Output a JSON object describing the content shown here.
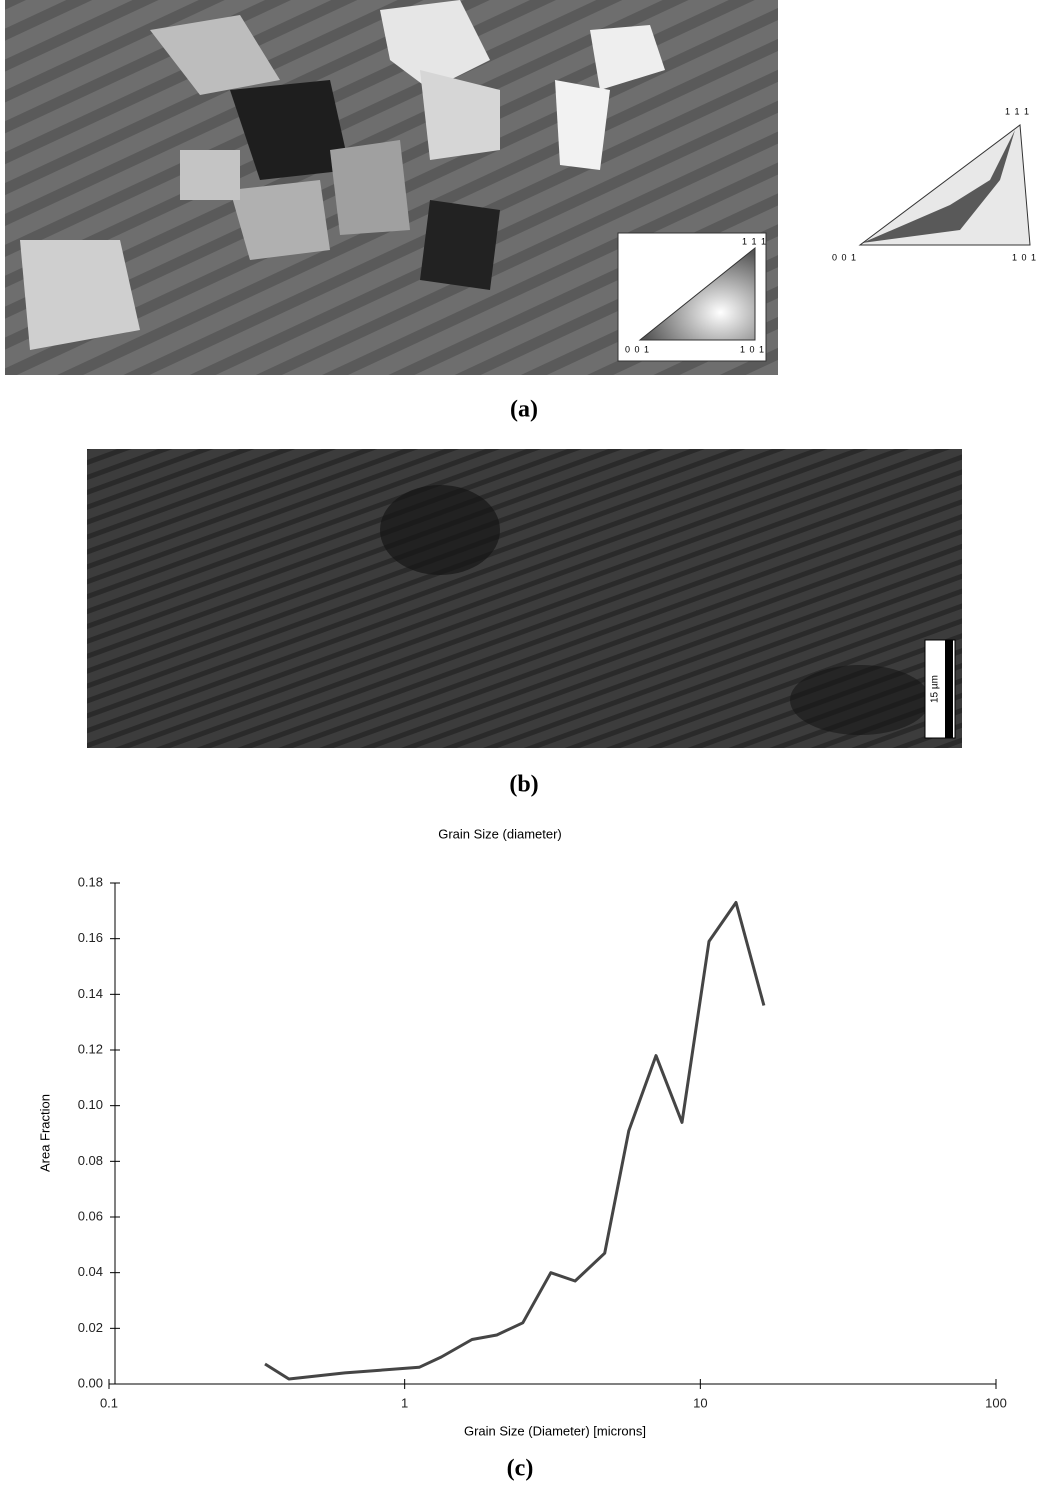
{
  "figure": {
    "panel_a": {
      "inset_labels": [
        "1 1 1",
        "0 0 1",
        "1 0 1"
      ],
      "pole_figure_labels": [
        "1 1 1",
        "0 0 1",
        "1 0 1"
      ],
      "caption": "(a)"
    },
    "panel_b": {
      "scale_bar": "15 µm",
      "caption": "(b)"
    },
    "panel_c": {
      "caption": "(c)"
    }
  },
  "chart_data": {
    "type": "line",
    "title": "Grain Size (diameter)",
    "x_label": "Grain Size (Diameter) [microns]",
    "y_label": "Area Fraction",
    "x": [
      0.337,
      0.406,
      0.628,
      1.12,
      1.33,
      1.69,
      2.05,
      2.51,
      3.12,
      3.77,
      4.75,
      5.73,
      7.08,
      8.67,
      10.7,
      13.2,
      16.4
    ],
    "values": [
      0.0072,
      0.0018,
      0.004,
      0.006,
      0.0097,
      0.016,
      0.0176,
      0.022,
      0.04,
      0.037,
      0.047,
      0.091,
      0.118,
      0.094,
      0.159,
      0.173,
      0.136
    ],
    "color": "#454545",
    "x_log": true,
    "grid": false,
    "xlim": [
      0.1,
      100
    ],
    "xticks": [
      0.1,
      1,
      10,
      100
    ],
    "ylim": [
      0,
      0.18
    ],
    "yticks": [
      {
        "value": 0,
        "label": "0.00"
      },
      0.02,
      0.04,
      0.06,
      0.08,
      {
        "value": 0.1,
        "label": "0.10"
      },
      0.12,
      0.14,
      0.16,
      0.18
    ]
  }
}
